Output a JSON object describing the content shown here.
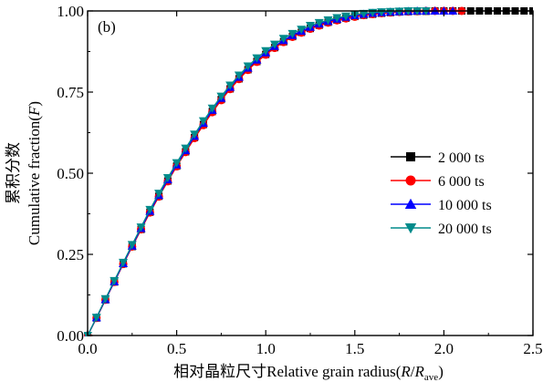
{
  "chart_data": {
    "type": "line",
    "panel_label": "(b)",
    "xlabel_prefix": "相对晶粒尺寸Relative grain radius(",
    "xlabel_R": "R",
    "xlabel_slash": "/",
    "xlabel_Rave": "R",
    "xlabel_sub": "ave",
    "xlabel_suffix": ")",
    "ylabel_cn": "累积分数",
    "ylabel_en_prefix": "Cumulative fraction(",
    "ylabel_en_F": "F",
    "ylabel_en_suffix": ")",
    "xlim": [
      0,
      2.5
    ],
    "ylim": [
      0,
      1.0
    ],
    "xticks": [
      0.0,
      0.5,
      1.0,
      1.5,
      2.0,
      2.5
    ],
    "xtick_labels": [
      "0.0",
      "0.5",
      "1.0",
      "1.5",
      "2.0",
      "2.5"
    ],
    "yticks": [
      0.0,
      0.25,
      0.5,
      0.75,
      1.0
    ],
    "ytick_labels": [
      "0.00",
      "0.25",
      "0.50",
      "0.75",
      "1.00"
    ],
    "grid": false,
    "legend_position": "right",
    "series": [
      {
        "name": "2 000 ts",
        "color": "#000000",
        "marker": "square",
        "x": [
          0.0,
          0.05,
          0.1,
          0.15,
          0.2,
          0.25,
          0.3,
          0.35,
          0.4,
          0.45,
          0.5,
          0.55,
          0.6,
          0.65,
          0.7,
          0.75,
          0.8,
          0.85,
          0.9,
          0.95,
          1.0,
          1.05,
          1.1,
          1.15,
          1.2,
          1.25,
          1.3,
          1.35,
          1.4,
          1.45,
          1.5,
          1.55,
          1.6,
          1.65,
          1.7,
          1.75,
          1.8,
          1.85,
          1.9,
          1.95,
          2.0,
          2.05,
          2.1,
          2.15,
          2.2,
          2.25,
          2.3,
          2.35,
          2.4,
          2.45,
          2.5
        ],
        "y": [
          0.0,
          0.054,
          0.11,
          0.165,
          0.221,
          0.274,
          0.327,
          0.38,
          0.429,
          0.476,
          0.522,
          0.566,
          0.61,
          0.65,
          0.69,
          0.727,
          0.76,
          0.791,
          0.819,
          0.844,
          0.866,
          0.887,
          0.905,
          0.921,
          0.934,
          0.946,
          0.956,
          0.965,
          0.972,
          0.978,
          0.983,
          0.987,
          0.99,
          0.993,
          0.995,
          0.997,
          0.998,
          0.999,
          0.999,
          1.0,
          1.0,
          1.0,
          1.0,
          1.0,
          1.0,
          1.0,
          1.0,
          1.0,
          1.0,
          1.0,
          1.0
        ]
      },
      {
        "name": "6 000 ts",
        "color": "#ff0000",
        "marker": "circle",
        "x": [
          0.0,
          0.05,
          0.1,
          0.15,
          0.2,
          0.25,
          0.3,
          0.35,
          0.4,
          0.45,
          0.5,
          0.55,
          0.6,
          0.65,
          0.7,
          0.75,
          0.8,
          0.85,
          0.9,
          0.95,
          1.0,
          1.05,
          1.1,
          1.15,
          1.2,
          1.25,
          1.3,
          1.35,
          1.4,
          1.45,
          1.5,
          1.55,
          1.6,
          1.65,
          1.7,
          1.75,
          1.8,
          1.85,
          1.9,
          1.95,
          2.0,
          2.05,
          2.1
        ],
        "y": [
          0.0,
          0.054,
          0.11,
          0.165,
          0.22,
          0.274,
          0.327,
          0.379,
          0.428,
          0.475,
          0.521,
          0.565,
          0.608,
          0.648,
          0.688,
          0.725,
          0.759,
          0.79,
          0.818,
          0.843,
          0.865,
          0.886,
          0.904,
          0.92,
          0.933,
          0.945,
          0.955,
          0.964,
          0.971,
          0.977,
          0.982,
          0.987,
          0.99,
          0.993,
          0.995,
          0.997,
          0.998,
          0.999,
          1.0,
          1.0,
          1.0,
          1.0,
          1.0
        ]
      },
      {
        "name": "10 000 ts",
        "color": "#0000ff",
        "marker": "triangle-up",
        "x": [
          0.0,
          0.05,
          0.1,
          0.15,
          0.2,
          0.25,
          0.3,
          0.35,
          0.4,
          0.45,
          0.5,
          0.55,
          0.6,
          0.65,
          0.7,
          0.75,
          0.8,
          0.85,
          0.9,
          0.95,
          1.0,
          1.05,
          1.1,
          1.15,
          1.2,
          1.25,
          1.3,
          1.35,
          1.4,
          1.45,
          1.5,
          1.55,
          1.6,
          1.65,
          1.7,
          1.75,
          1.8,
          1.85,
          1.9,
          1.95,
          2.0,
          2.05
        ],
        "y": [
          0.0,
          0.055,
          0.111,
          0.166,
          0.222,
          0.276,
          0.33,
          0.383,
          0.432,
          0.48,
          0.526,
          0.57,
          0.614,
          0.654,
          0.694,
          0.731,
          0.765,
          0.796,
          0.824,
          0.849,
          0.871,
          0.891,
          0.909,
          0.925,
          0.938,
          0.95,
          0.96,
          0.968,
          0.975,
          0.981,
          0.986,
          0.99,
          0.993,
          0.995,
          0.997,
          0.998,
          0.999,
          1.0,
          1.0,
          1.0,
          1.0,
          1.0
        ]
      },
      {
        "name": "20 000 ts",
        "color": "#008b8b",
        "marker": "triangle-down",
        "x": [
          0.0,
          0.05,
          0.1,
          0.15,
          0.2,
          0.25,
          0.3,
          0.35,
          0.4,
          0.45,
          0.5,
          0.55,
          0.6,
          0.65,
          0.7,
          0.75,
          0.8,
          0.85,
          0.9,
          0.95,
          1.0,
          1.05,
          1.1,
          1.15,
          1.2,
          1.25,
          1.3,
          1.35,
          1.4,
          1.45,
          1.5,
          1.55,
          1.6,
          1.65,
          1.7,
          1.75,
          1.8,
          1.85,
          1.9
        ],
        "y": [
          0.0,
          0.056,
          0.113,
          0.169,
          0.225,
          0.28,
          0.334,
          0.388,
          0.438,
          0.486,
          0.532,
          0.577,
          0.62,
          0.661,
          0.7,
          0.737,
          0.771,
          0.802,
          0.83,
          0.855,
          0.877,
          0.897,
          0.915,
          0.93,
          0.943,
          0.955,
          0.964,
          0.972,
          0.979,
          0.984,
          0.989,
          0.992,
          0.995,
          0.997,
          0.998,
          0.999,
          1.0,
          1.0,
          1.0
        ]
      }
    ]
  }
}
